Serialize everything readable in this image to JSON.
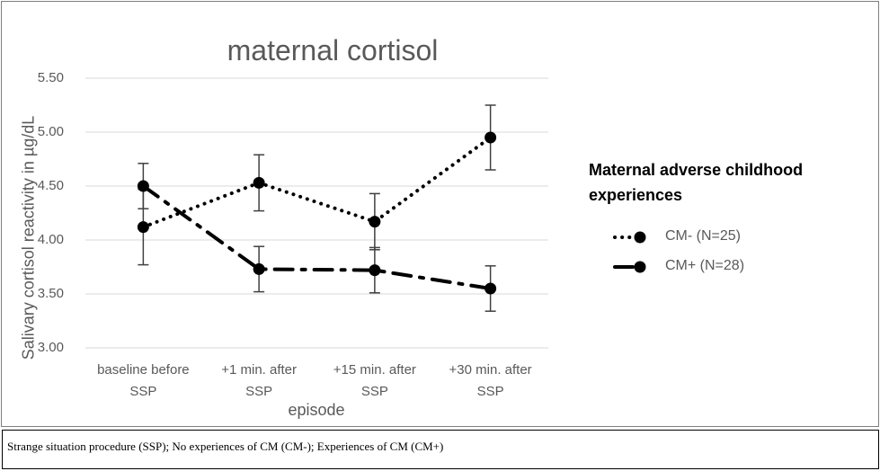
{
  "chart_data": {
    "type": "line",
    "title": "maternal cortisol",
    "x_label": "episode",
    "y_label": "Salivary cortisol reactivity in µg/dL",
    "legend_title": "Maternal adverse childhood experiences",
    "categories": [
      "baseline before\nSSP",
      "+1 min. after\nSSP",
      "+15 min. after\nSSP",
      "+30 min. after\nSSP"
    ],
    "series": [
      {
        "name": "CM- (N=25)",
        "color": "#000000",
        "style": "dotted",
        "values": [
          4.12,
          4.53,
          4.17,
          4.95
        ],
        "errors": [
          0.35,
          0.26,
          0.26,
          0.3
        ]
      },
      {
        "name": "CM+ (N=28)",
        "color": "#000000",
        "style": "dashdot",
        "values": [
          4.5,
          3.73,
          3.72,
          3.55
        ],
        "errors": [
          0.21,
          0.21,
          0.21,
          0.21
        ]
      }
    ],
    "ylim": [
      3.0,
      5.5
    ],
    "yticks": [
      {
        "value": 3.0,
        "label": "3.00"
      },
      {
        "value": 3.5,
        "label": "3.50"
      },
      {
        "value": 4.0,
        "label": "4.00"
      },
      {
        "value": 4.5,
        "label": "4.50"
      },
      {
        "value": 5.0,
        "label": "5.00"
      },
      {
        "value": 5.5,
        "label": "5.50"
      }
    ],
    "grid": true
  },
  "caption": "Strange situation procedure (SSP); No experiences of CM (CM-); Experiences of CM (CM+)"
}
